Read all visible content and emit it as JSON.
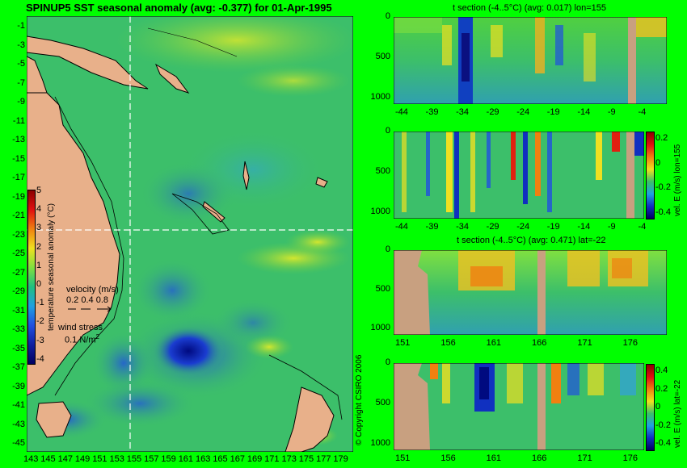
{
  "map": {
    "title": "SPINUP5 SST seasonal anomaly (avg: -0.377) for 01-Apr-1995",
    "y_ticks": [
      "-1",
      "-3",
      "-5",
      "-7",
      "-9",
      "-11",
      "-13",
      "-15",
      "-17",
      "-19",
      "-21",
      "-23",
      "-25",
      "-27",
      "-29",
      "-31",
      "-33",
      "-35",
      "-37",
      "-39",
      "-41",
      "-43",
      "-45"
    ],
    "x_ticks": [
      "143",
      "145",
      "147",
      "149",
      "151",
      "153",
      "155",
      "157",
      "159",
      "161",
      "163",
      "165",
      "167",
      "169",
      "171",
      "173",
      "175",
      "177",
      "179"
    ],
    "colorbar_ticks": [
      "5",
      "4",
      "3",
      "2",
      "1",
      "0",
      "-1",
      "-2",
      "-3",
      "-4"
    ],
    "colorbar_label": "temperature seasonal anomaly (°C)",
    "velocity_label": "velocity (m/s)",
    "velocity_scale": "0.2 0.4 0.8",
    "wind_label": "wind stress",
    "wind_scale": "0.1 N/m",
    "wind_exp": "2",
    "copyright": "© Copyright CSIRO 2006"
  },
  "panels": [
    {
      "title": "t section (-4..5°C) (avg: 0.017) lon=155",
      "x_ticks": [
        "-44",
        "-39",
        "-34",
        "-29",
        "-24",
        "-19",
        "-14",
        "-9",
        "-4"
      ],
      "y_ticks": [
        "0",
        "500",
        "1000"
      ]
    },
    {
      "title": "",
      "x_ticks": [
        "-44",
        "-39",
        "-34",
        "-29",
        "-24",
        "-19",
        "-14",
        "-9",
        "-4"
      ],
      "y_ticks": [
        "0",
        "500",
        "1000"
      ],
      "cb_ticks": [
        "0.2",
        "0",
        "-0.2",
        "-0.4"
      ],
      "cb_label": "vel. E (m/s) lon=155"
    },
    {
      "title": "t section (-4..5°C) (avg: 0.471) lat=-22",
      "x_ticks": [
        "151",
        "156",
        "161",
        "166",
        "171",
        "176"
      ],
      "y_ticks": [
        "0",
        "500",
        "1000"
      ]
    },
    {
      "title": "",
      "x_ticks": [
        "151",
        "156",
        "161",
        "166",
        "171",
        "176"
      ],
      "y_ticks": [
        "0",
        "500",
        "1000"
      ],
      "cb_ticks": [
        "0.4",
        "0.2",
        "0",
        "-0.2",
        "-0.4"
      ],
      "cb_label": "vel. E (m/s) lat=-22"
    }
  ],
  "colors": {
    "background": "#00ff00",
    "land": "#e8b08a",
    "sea_mid": "#3cbf6a",
    "warm": "#f0e020",
    "cold": "#1030c0",
    "grey_bar": "#c8a080"
  }
}
